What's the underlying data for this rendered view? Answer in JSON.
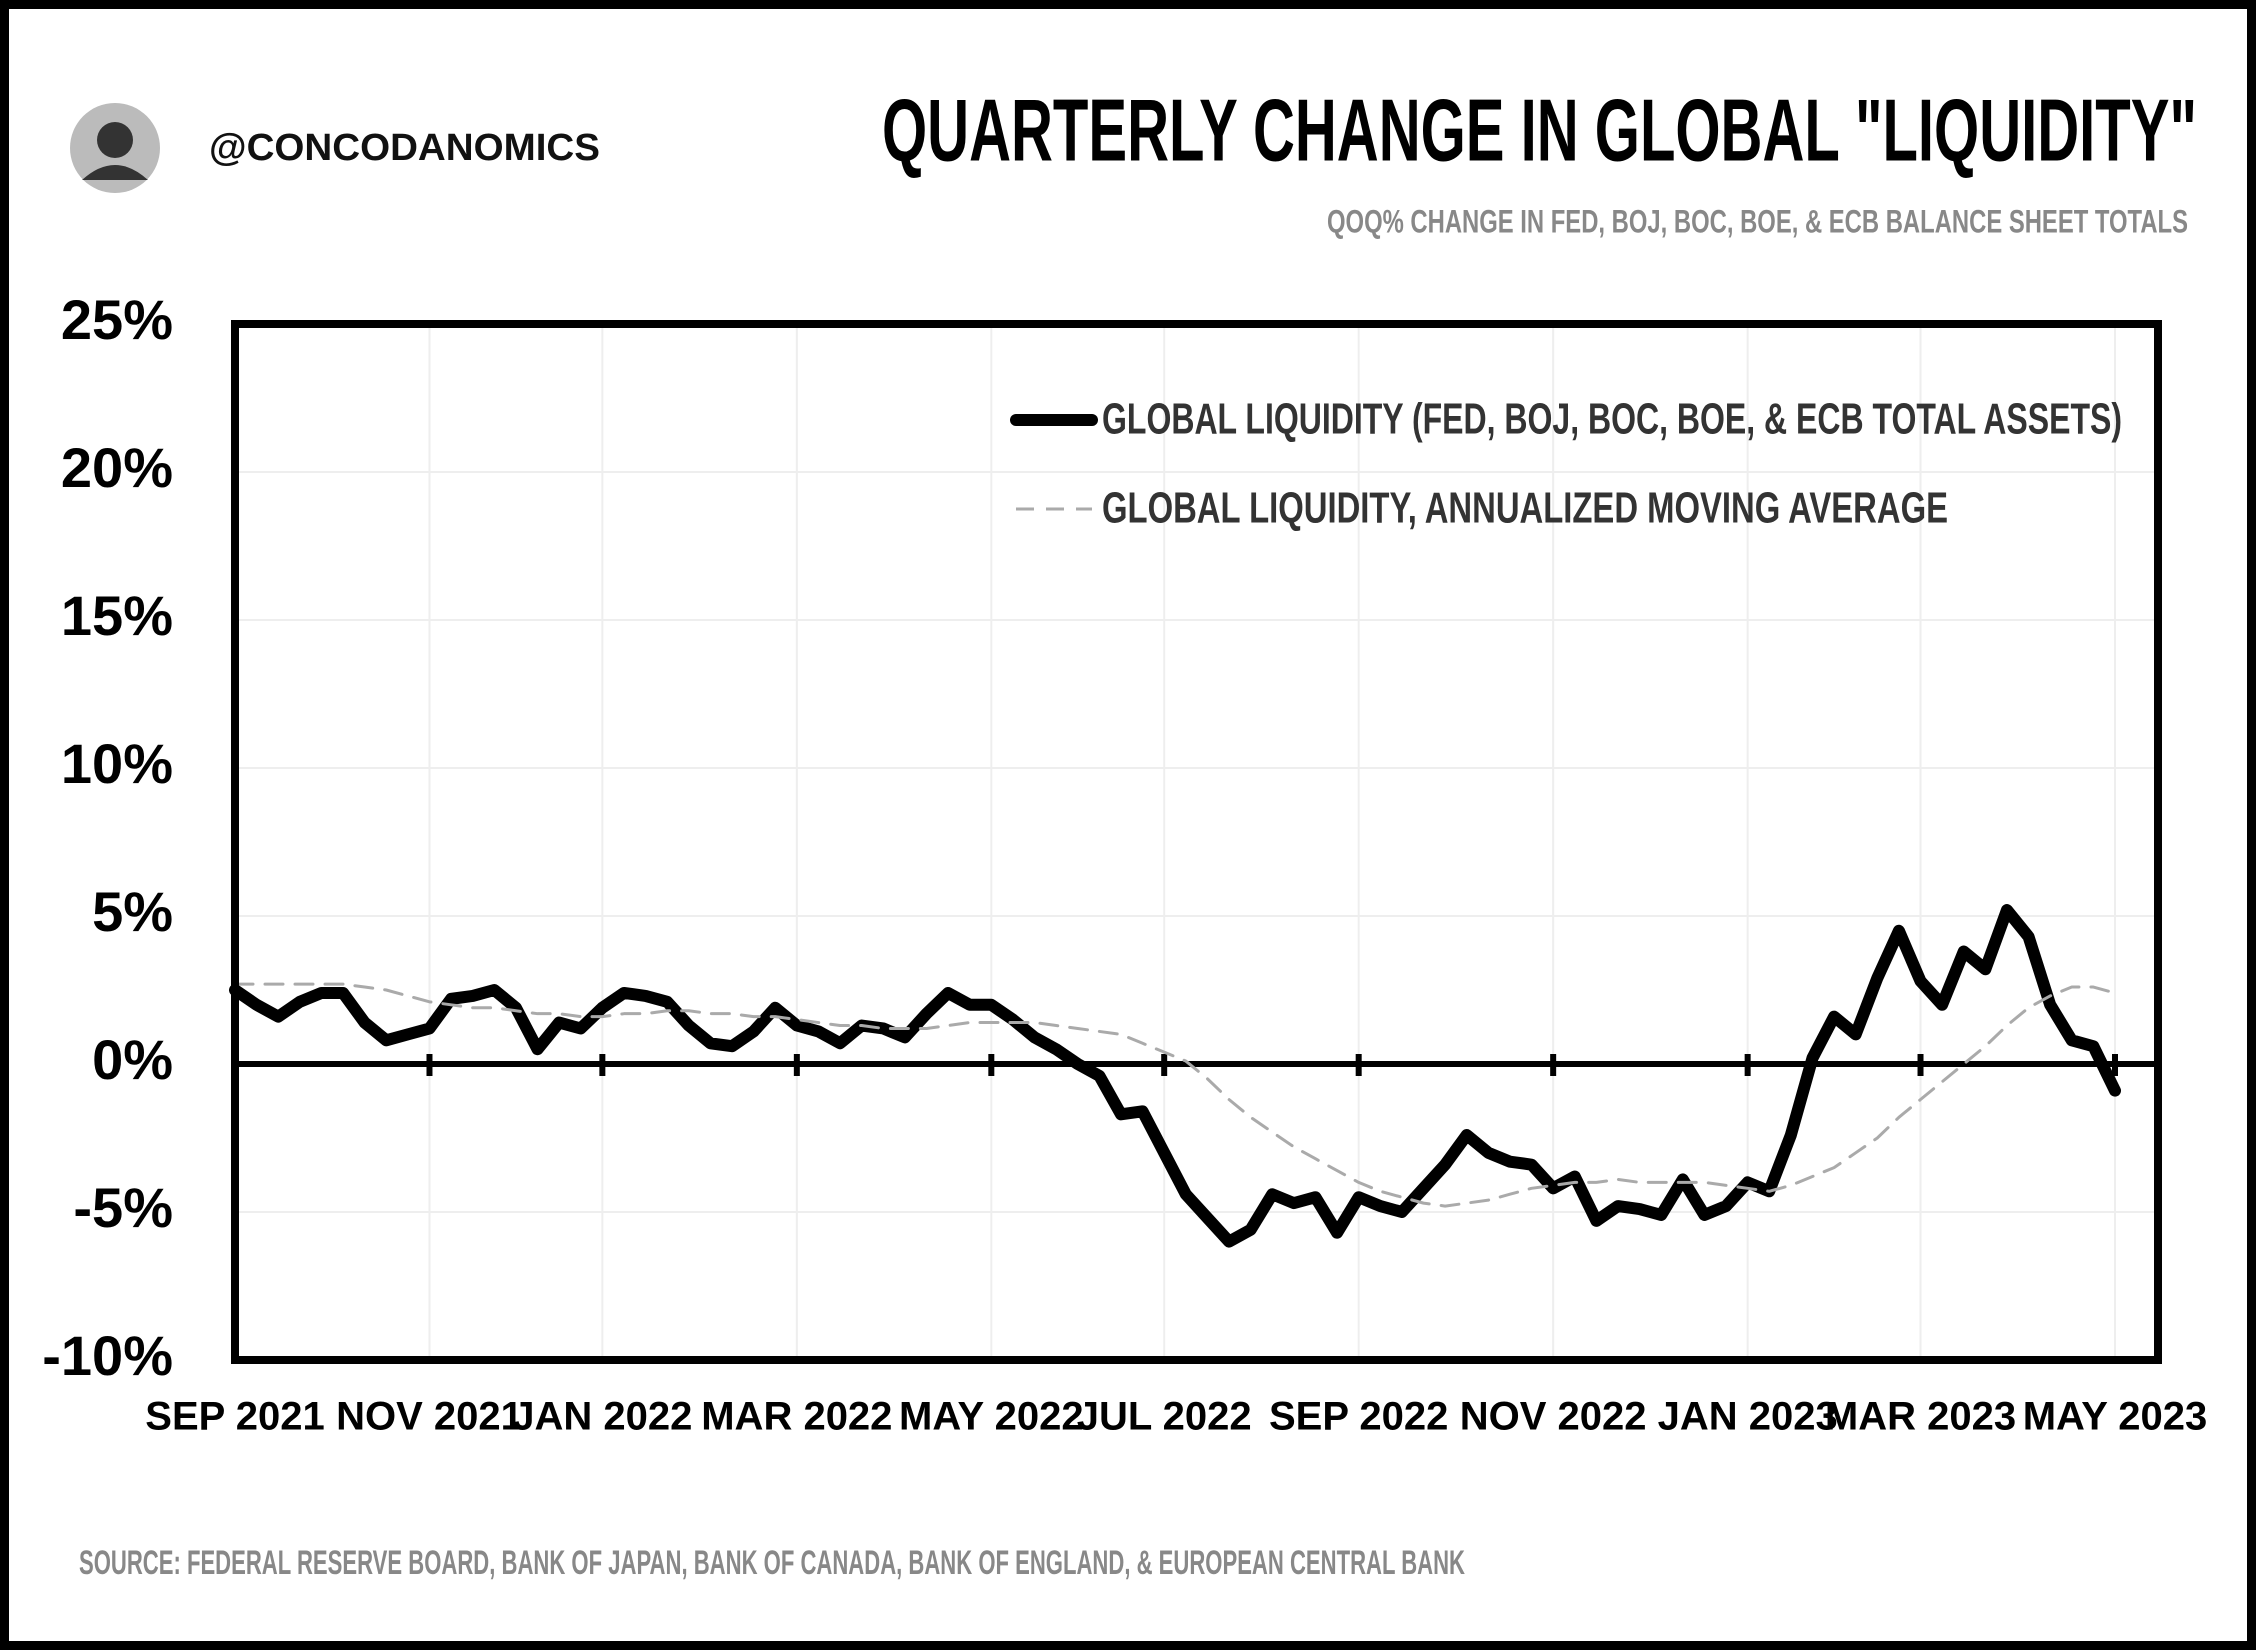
{
  "chart_data": {
    "type": "line",
    "title": "QUARTERLY CHANGE IN GLOBAL \"LIQUIDITY\"",
    "subtitle": "QOQ% CHANGE IN FED, BOJ, BOC, BOE, & ECB BALANCE SHEET TOTALS",
    "handle": "@CONCODANOMICS",
    "source": "SOURCE: FEDERAL RESERVE BOARD, BANK OF JAPAN, BANK OF CANADA, BANK OF ENGLAND, & EUROPEAN CENTRAL BANK",
    "categories": [
      "SEP 2021",
      null,
      null,
      null,
      null,
      null,
      null,
      null,
      null,
      "NOV 2021",
      null,
      null,
      null,
      null,
      null,
      null,
      null,
      "JAN 2022",
      null,
      null,
      null,
      null,
      null,
      null,
      null,
      null,
      "MAR 2022",
      null,
      null,
      null,
      null,
      null,
      null,
      null,
      null,
      "MAY 2022",
      null,
      null,
      null,
      null,
      null,
      null,
      null,
      "JUL 2022",
      null,
      null,
      null,
      null,
      null,
      null,
      null,
      null,
      "SEP 2022",
      null,
      null,
      null,
      null,
      null,
      null,
      null,
      null,
      "NOV 2022",
      null,
      null,
      null,
      null,
      null,
      null,
      null,
      null,
      "JAN 2023",
      null,
      null,
      null,
      null,
      null,
      null,
      null,
      "MAR 2023",
      null,
      null,
      null,
      null,
      null,
      null,
      null,
      null,
      "MAY 2023"
    ],
    "series": [
      {
        "name": "GLOBAL LIQUIDITY (FED, BOJ, BOC, BOE, & ECB TOTAL ASSETS)",
        "color": "#000000",
        "values": [
          2.5,
          2.0,
          1.6,
          2.1,
          2.4,
          2.4,
          1.4,
          0.8,
          1.0,
          1.2,
          2.2,
          2.3,
          2.5,
          1.9,
          0.5,
          1.4,
          1.2,
          1.9,
          2.4,
          2.3,
          2.1,
          1.3,
          0.7,
          0.6,
          1.1,
          1.9,
          1.3,
          1.1,
          0.7,
          1.3,
          1.2,
          0.9,
          1.7,
          2.4,
          2.0,
          2.0,
          1.5,
          0.9,
          0.5,
          0.0,
          -0.4,
          -1.7,
          -1.6,
          -3.0,
          -4.4,
          -5.2,
          -6.0,
          -5.6,
          -4.4,
          -4.7,
          -4.5,
          -5.7,
          -4.5,
          -4.8,
          -5.0,
          -4.2,
          -3.4,
          -2.4,
          -3.0,
          -3.3,
          -3.4,
          -4.2,
          -3.8,
          -5.3,
          -4.8,
          -4.9,
          -5.1,
          -3.9,
          -5.1,
          -4.8,
          -4.0,
          -4.3,
          -2.4,
          0.2,
          1.6,
          1.0,
          2.9,
          4.5,
          2.8,
          2.0,
          3.8,
          3.2,
          5.2,
          4.3,
          2.0,
          0.8,
          0.6,
          -0.9
        ]
      },
      {
        "name": "GLOBAL LIQUIDITY, ANNUALIZED MOVING AVERAGE",
        "color": "#aaaaaa",
        "dashed": true,
        "values": [
          2.7,
          2.7,
          2.7,
          2.7,
          2.7,
          2.7,
          2.6,
          2.5,
          2.3,
          2.1,
          2.0,
          1.9,
          1.9,
          1.8,
          1.7,
          1.7,
          1.6,
          1.6,
          1.7,
          1.7,
          1.8,
          1.8,
          1.7,
          1.7,
          1.6,
          1.6,
          1.5,
          1.4,
          1.3,
          1.3,
          1.2,
          1.2,
          1.2,
          1.3,
          1.4,
          1.4,
          1.4,
          1.4,
          1.3,
          1.2,
          1.1,
          1.0,
          0.7,
          0.4,
          0.1,
          -0.5,
          -1.2,
          -1.8,
          -2.3,
          -2.8,
          -3.2,
          -3.6,
          -4.0,
          -4.3,
          -4.5,
          -4.7,
          -4.8,
          -4.7,
          -4.6,
          -4.4,
          -4.2,
          -4.1,
          -4.0,
          -4.0,
          -3.9,
          -4.0,
          -4.0,
          -4.0,
          -4.0,
          -4.1,
          -4.2,
          -4.3,
          -4.1,
          -3.8,
          -3.5,
          -3.0,
          -2.5,
          -1.8,
          -1.2,
          -0.6,
          0.0,
          0.6,
          1.3,
          1.9,
          2.3,
          2.6,
          2.6,
          2.4
        ]
      }
    ],
    "ylim": [
      -10,
      25
    ],
    "yticks": [
      {
        "value": -10,
        "label": "-10%"
      },
      {
        "value": -5,
        "label": "-5%"
      },
      {
        "value": 0,
        "label": "0%"
      },
      {
        "value": 5,
        "label": "5%"
      },
      {
        "value": 10,
        "label": "10%"
      },
      {
        "value": 15,
        "label": "15%"
      },
      {
        "value": 20,
        "label": "20%"
      },
      {
        "value": 25,
        "label": "25%"
      }
    ],
    "grid": true,
    "legend": "upper right"
  }
}
